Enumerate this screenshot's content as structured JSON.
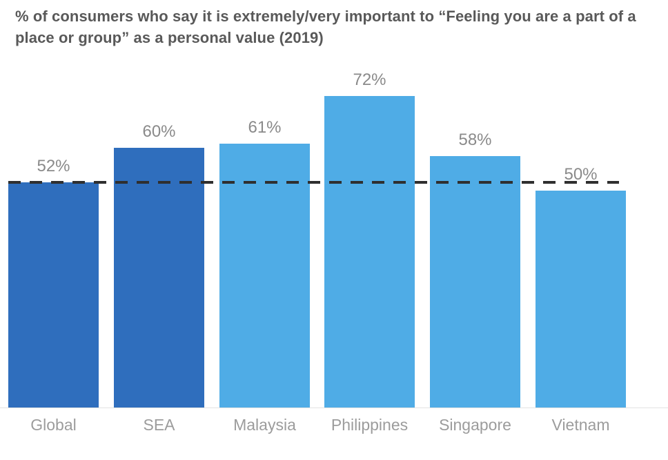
{
  "title": "% of consumers who say it is extremely/very important to “Feeling you are a part of a place or group” as a personal value (2019)",
  "chart_data": {
    "type": "bar",
    "title": "% of consumers who say it is extremely/very important to “Feeling you are a part of a place or group” as a personal value (2019)",
    "categories": [
      "Global",
      "SEA",
      "Malaysia",
      "Philippines",
      "Singapore",
      "Vietnam"
    ],
    "values": [
      52,
      60,
      61,
      72,
      58,
      50
    ],
    "value_labels": [
      "52%",
      "60%",
      "61%",
      "72%",
      "58%",
      "50%"
    ],
    "bar_colors": [
      "#2F6EBD",
      "#2F6EBD",
      "#4FACE6",
      "#4FACE6",
      "#4FACE6",
      "#4FACE6"
    ],
    "reference_line": {
      "value": 52,
      "style": "dashed",
      "color": "#2F2F2F",
      "label": ""
    },
    "xlabel": "",
    "ylabel": "",
    "ylim": [
      0,
      80
    ],
    "grid": false,
    "legend": "none",
    "colors": {
      "dark_blue": "#2F6EBD",
      "light_blue": "#4FACE6",
      "title_text": "#595959",
      "value_label_text": "#8A8A8A",
      "category_label_text": "#9C9C9C",
      "baseline": "#E2E2E2"
    }
  }
}
